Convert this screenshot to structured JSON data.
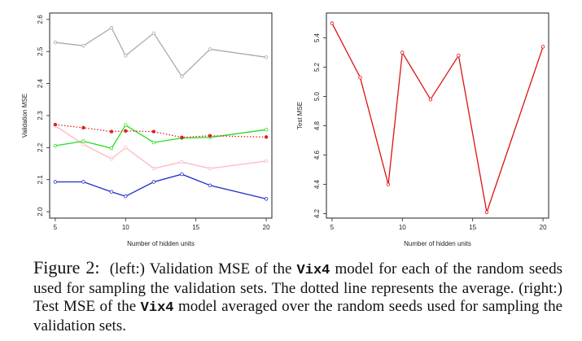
{
  "chart_data": [
    {
      "type": "line",
      "title": "",
      "xlabel": "Number of hidden units",
      "ylabel": "Validation MSE",
      "xlim": [
        4.6,
        20.4
      ],
      "ylim": [
        1.98,
        2.62
      ],
      "x_ticks": [
        5,
        10,
        15,
        20
      ],
      "y_ticks": [
        2.0,
        2.1,
        2.2,
        2.3,
        2.4,
        2.5,
        2.6
      ],
      "x": [
        5,
        7,
        9,
        10,
        12,
        14,
        16,
        20
      ],
      "grid": false,
      "series": [
        {
          "color": "#aaaaaa",
          "style": "solid",
          "values": [
            2.528,
            2.518,
            2.574,
            2.487,
            2.557,
            2.422,
            2.507,
            2.482
          ]
        },
        {
          "color": "#ffb6c1",
          "style": "solid",
          "values": [
            2.268,
            2.21,
            2.165,
            2.2,
            2.135,
            2.155,
            2.135,
            2.158
          ]
        },
        {
          "color": "#22dd22",
          "style": "solid",
          "values": [
            2.206,
            2.22,
            2.198,
            2.27,
            2.216,
            2.23,
            2.232,
            2.256
          ]
        },
        {
          "color": "#1a2ec8",
          "style": "solid",
          "values": [
            2.093,
            2.093,
            2.062,
            2.048,
            2.093,
            2.117,
            2.082,
            2.04
          ]
        },
        {
          "color": "#e02020",
          "style": "dotted",
          "values": [
            2.272,
            2.262,
            2.25,
            2.252,
            2.25,
            2.232,
            2.237,
            2.233
          ]
        }
      ]
    },
    {
      "type": "line",
      "title": "",
      "xlabel": "Number of hidden units",
      "ylabel": "Test MSE",
      "xlim": [
        4.6,
        20.4
      ],
      "ylim": [
        4.17,
        5.57
      ],
      "x_ticks": [
        5,
        10,
        15,
        20
      ],
      "y_ticks": [
        4.2,
        4.4,
        4.6,
        4.8,
        5.0,
        5.2,
        5.4
      ],
      "x": [
        5,
        7,
        9,
        10,
        12,
        14,
        16,
        20
      ],
      "grid": false,
      "series": [
        {
          "color": "#dd1111",
          "style": "solid",
          "values": [
            5.5,
            5.13,
            4.4,
            5.3,
            4.98,
            5.28,
            4.21,
            5.34
          ]
        }
      ]
    }
  ],
  "caption": {
    "figure_label": "Figure 2:",
    "part1": "(left:) Validation MSE of the",
    "model_name": "Vix4",
    "part2": "model for each of the random seeds used for sampling the validation sets. The dotted line represents the average. (right:) Test MSE of the",
    "part3": "model averaged over the random seeds used for sampling the validation sets."
  }
}
